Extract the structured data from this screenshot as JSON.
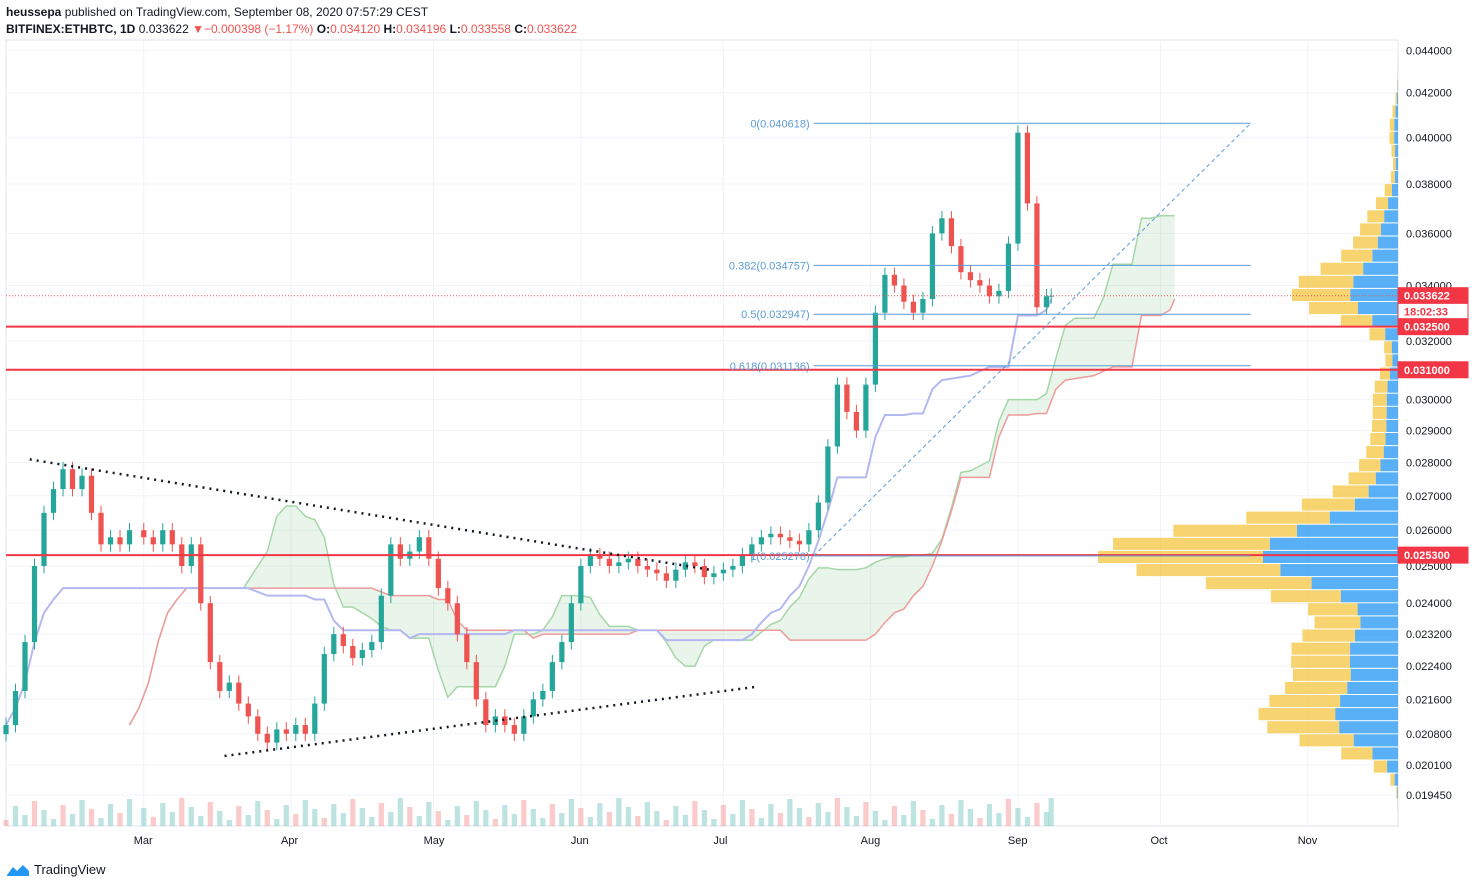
{
  "header": {
    "author": "heussepa",
    "published": "published on TradingView.com, September 08, 2020 07:57:29 CEST",
    "symbol": "BITFINEX:ETHBTC, 1D",
    "last": "0.033622",
    "change_arrow": "▼",
    "change": "−0.000398 (−1.17%)",
    "o_label": "O:",
    "o_val": "0.034120",
    "h_label": "H:",
    "h_val": "0.034196",
    "l_label": "L:",
    "l_val": "0.033558",
    "c_label": "C:",
    "c_val": "0.033622"
  },
  "footer": {
    "brand": "TradingView",
    "logo_icon": "tradingview-logo-icon"
  },
  "colors": {
    "up": "#26a69a",
    "down": "#ef5350",
    "hline": "#f23645",
    "fib": "#5b9bd5",
    "kijun": "#b39ddb",
    "tenkan": "#b3b8f0",
    "vp_up": "#2196f3",
    "vp_down": "#f5c542"
  },
  "chart_data": {
    "type": "candlestick",
    "symbol": "BITFINEX:ETHBTC",
    "timeframe": "1D",
    "x_axis": {
      "tick_labels": [
        "Mar",
        "Apr",
        "May",
        "Jun",
        "Jul",
        "Aug",
        "Sep",
        "Oct",
        "Nov"
      ],
      "start_date": "2020-02-01",
      "end_date": "2020-11-20"
    },
    "y_axis": {
      "tick_labels": [
        "0.044000",
        "0.042000",
        "0.040000",
        "0.038000",
        "0.036000",
        "0.034000",
        "0.032000",
        "0.030000",
        "0.029000",
        "0.028000",
        "0.027000",
        "0.026000",
        "0.025000",
        "0.024000",
        "0.023200",
        "0.022400",
        "0.021600",
        "0.020800",
        "0.020100",
        "0.019450"
      ],
      "scale": "log",
      "range": [
        0.0188,
        0.0445
      ]
    },
    "price_badges": [
      {
        "label": "0.033622",
        "value": 0.033622,
        "kind": "last"
      },
      {
        "label": "18:02:33",
        "value": 0.03305,
        "kind": "countdown"
      },
      {
        "label": "0.032500",
        "value": 0.0325,
        "kind": "level"
      },
      {
        "label": "0.031000",
        "value": 0.031,
        "kind": "level"
      },
      {
        "label": "0.025300",
        "value": 0.0253,
        "kind": "level"
      }
    ],
    "horizontal_levels": [
      0.0325,
      0.031,
      0.0253
    ],
    "fibonacci": [
      {
        "label": "0(0.040618)",
        "value": 0.040618
      },
      {
        "label": "0.382(0.034757)",
        "value": 0.034757
      },
      {
        "label": "0.5(0.032947)",
        "value": 0.032947
      },
      {
        "label": "0.618(0.031136)",
        "value": 0.031136
      },
      {
        "label": "1(0.025278)",
        "value": 0.025278
      }
    ],
    "closes": [
      [
        "2020-02-01",
        0.021
      ],
      [
        "2020-02-03",
        0.0218
      ],
      [
        "2020-02-05",
        0.023
      ],
      [
        "2020-02-07",
        0.025
      ],
      [
        "2020-02-09",
        0.0265
      ],
      [
        "2020-02-11",
        0.0272
      ],
      [
        "2020-02-13",
        0.0278
      ],
      [
        "2020-02-15",
        0.0272
      ],
      [
        "2020-02-17",
        0.0276
      ],
      [
        "2020-02-19",
        0.0265
      ],
      [
        "2020-02-21",
        0.0256
      ],
      [
        "2020-02-23",
        0.0258
      ],
      [
        "2020-02-25",
        0.0256
      ],
      [
        "2020-02-27",
        0.026
      ],
      [
        "2020-03-01",
        0.0258
      ],
      [
        "2020-03-03",
        0.0256
      ],
      [
        "2020-03-05",
        0.026
      ],
      [
        "2020-03-07",
        0.0256
      ],
      [
        "2020-03-09",
        0.025
      ],
      [
        "2020-03-11",
        0.0256
      ],
      [
        "2020-03-13",
        0.024
      ],
      [
        "2020-03-15",
        0.0225
      ],
      [
        "2020-03-17",
        0.0218
      ],
      [
        "2020-03-19",
        0.022
      ],
      [
        "2020-03-21",
        0.0215
      ],
      [
        "2020-03-23",
        0.0212
      ],
      [
        "2020-03-25",
        0.0208
      ],
      [
        "2020-03-27",
        0.0206
      ],
      [
        "2020-03-29",
        0.0209
      ],
      [
        "2020-03-31",
        0.0208
      ],
      [
        "2020-04-02",
        0.021
      ],
      [
        "2020-04-04",
        0.0208
      ],
      [
        "2020-04-06",
        0.0215
      ],
      [
        "2020-04-08",
        0.0227
      ],
      [
        "2020-04-10",
        0.0232
      ],
      [
        "2020-04-12",
        0.0229
      ],
      [
        "2020-04-14",
        0.0226
      ],
      [
        "2020-04-16",
        0.0228
      ],
      [
        "2020-04-18",
        0.023
      ],
      [
        "2020-04-20",
        0.0242
      ],
      [
        "2020-04-22",
        0.0256
      ],
      [
        "2020-04-24",
        0.0252
      ],
      [
        "2020-04-26",
        0.0254
      ],
      [
        "2020-04-28",
        0.0258
      ],
      [
        "2020-04-30",
        0.0252
      ],
      [
        "2020-05-02",
        0.0244
      ],
      [
        "2020-05-04",
        0.024
      ],
      [
        "2020-05-06",
        0.0232
      ],
      [
        "2020-05-08",
        0.0225
      ],
      [
        "2020-05-10",
        0.0216
      ],
      [
        "2020-05-12",
        0.021
      ],
      [
        "2020-05-14",
        0.0212
      ],
      [
        "2020-05-16",
        0.021
      ],
      [
        "2020-05-18",
        0.0208
      ],
      [
        "2020-05-20",
        0.0212
      ],
      [
        "2020-05-22",
        0.0216
      ],
      [
        "2020-05-24",
        0.0218
      ],
      [
        "2020-05-26",
        0.0225
      ],
      [
        "2020-05-28",
        0.023
      ],
      [
        "2020-05-30",
        0.024
      ],
      [
        "2020-06-01",
        0.025
      ],
      [
        "2020-06-03",
        0.0253
      ],
      [
        "2020-06-05",
        0.0252
      ],
      [
        "2020-06-07",
        0.025
      ],
      [
        "2020-06-09",
        0.0251
      ],
      [
        "2020-06-11",
        0.0252
      ],
      [
        "2020-06-13",
        0.025
      ],
      [
        "2020-06-15",
        0.0249
      ],
      [
        "2020-06-17",
        0.0248
      ],
      [
        "2020-06-19",
        0.0246
      ],
      [
        "2020-06-21",
        0.0249
      ],
      [
        "2020-06-23",
        0.0251
      ],
      [
        "2020-06-25",
        0.025
      ],
      [
        "2020-06-27",
        0.0247
      ],
      [
        "2020-06-29",
        0.0248
      ],
      [
        "2020-07-01",
        0.0249
      ],
      [
        "2020-07-03",
        0.025
      ],
      [
        "2020-07-05",
        0.0253
      ],
      [
        "2020-07-07",
        0.0256
      ],
      [
        "2020-07-09",
        0.0258
      ],
      [
        "2020-07-11",
        0.0259
      ],
      [
        "2020-07-13",
        0.0258
      ],
      [
        "2020-07-15",
        0.0257
      ],
      [
        "2020-07-17",
        0.0256
      ],
      [
        "2020-07-19",
        0.026
      ],
      [
        "2020-07-21",
        0.0268
      ],
      [
        "2020-07-23",
        0.0285
      ],
      [
        "2020-07-25",
        0.0305
      ],
      [
        "2020-07-27",
        0.0296
      ],
      [
        "2020-07-29",
        0.029
      ],
      [
        "2020-07-31",
        0.0305
      ],
      [
        "2020-08-02",
        0.033
      ],
      [
        "2020-08-04",
        0.0344
      ],
      [
        "2020-08-06",
        0.034
      ],
      [
        "2020-08-08",
        0.0334
      ],
      [
        "2020-08-10",
        0.033
      ],
      [
        "2020-08-12",
        0.0335
      ],
      [
        "2020-08-14",
        0.036
      ],
      [
        "2020-08-16",
        0.0366
      ],
      [
        "2020-08-18",
        0.0355
      ],
      [
        "2020-08-20",
        0.0345
      ],
      [
        "2020-08-22",
        0.0342
      ],
      [
        "2020-08-24",
        0.034
      ],
      [
        "2020-08-26",
        0.0336
      ],
      [
        "2020-08-28",
        0.0338
      ],
      [
        "2020-08-30",
        0.0356
      ],
      [
        "2020-09-01",
        0.0402
      ],
      [
        "2020-09-03",
        0.0372
      ],
      [
        "2020-09-05",
        0.0332
      ],
      [
        "2020-09-07",
        0.0336
      ],
      [
        "2020-09-08",
        0.033622
      ]
    ]
  }
}
